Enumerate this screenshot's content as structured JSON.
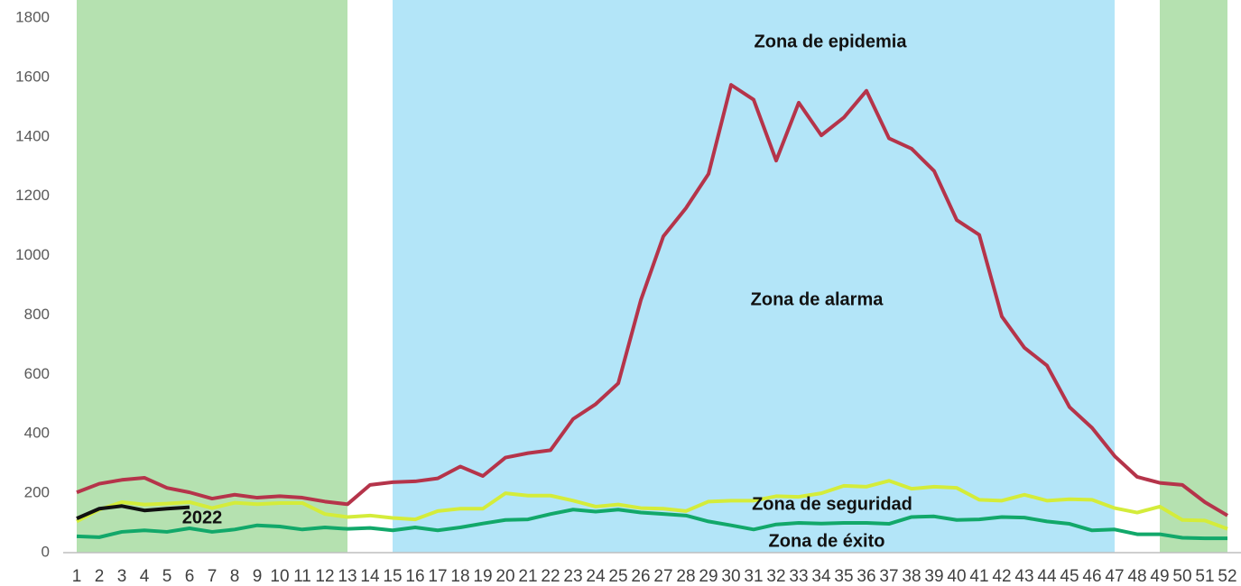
{
  "chart_data": {
    "type": "line",
    "categories": [
      1,
      2,
      3,
      4,
      5,
      6,
      7,
      8,
      9,
      10,
      11,
      12,
      13,
      14,
      15,
      16,
      17,
      18,
      19,
      20,
      21,
      22,
      23,
      24,
      25,
      26,
      27,
      28,
      29,
      30,
      31,
      32,
      33,
      34,
      35,
      36,
      37,
      38,
      39,
      40,
      41,
      42,
      43,
      44,
      45,
      46,
      47,
      48,
      49,
      50,
      51,
      52
    ],
    "ylim": [
      0,
      1800
    ],
    "yticks": [
      0,
      200,
      400,
      600,
      800,
      1000,
      1200,
      1400,
      1600,
      1800
    ],
    "bands": [
      {
        "from": 1,
        "to": 13,
        "color": "#b5e1b0"
      },
      {
        "from": 15,
        "to": 47,
        "color": "#b3e5f8"
      },
      {
        "from": 49,
        "to": 52,
        "color": "#b5e1b0"
      }
    ],
    "series": [
      {
        "color": "#b5344a",
        "values": [
          203,
          232,
          245,
          252,
          218,
          203,
          182,
          195,
          185,
          190,
          185,
          172,
          163,
          228,
          237,
          240,
          250,
          290,
          258,
          320,
          335,
          345,
          450,
          500,
          570,
          850,
          1065,
          1160,
          1275,
          1575,
          1525,
          1320,
          1515,
          1405,
          1465,
          1555,
          1395,
          1360,
          1285,
          1120,
          1070,
          795,
          690,
          630,
          490,
          420,
          325,
          255,
          235,
          228,
          170,
          125
        ]
      },
      {
        "color": "#d4ec3a",
        "values": [
          105,
          145,
          170,
          162,
          165,
          170,
          150,
          168,
          163,
          167,
          167,
          130,
          120,
          125,
          117,
          112,
          140,
          148,
          148,
          200,
          192,
          192,
          175,
          155,
          162,
          150,
          148,
          140,
          172,
          175,
          175,
          190,
          188,
          200,
          225,
          222,
          242,
          215,
          222,
          218,
          178,
          175,
          195,
          175,
          180,
          178,
          150,
          135,
          155,
          110,
          108,
          80
        ]
      },
      {
        "color": "#12a86a",
        "values": [
          55,
          52,
          70,
          75,
          70,
          82,
          70,
          78,
          92,
          88,
          78,
          85,
          80,
          83,
          75,
          85,
          75,
          85,
          98,
          110,
          112,
          130,
          145,
          138,
          145,
          135,
          130,
          125,
          105,
          92,
          78,
          95,
          100,
          98,
          100,
          100,
          97,
          120,
          122,
          110,
          112,
          120,
          118,
          105,
          97,
          75,
          78,
          62,
          62,
          50,
          48,
          48
        ]
      },
      {
        "name": "2022",
        "color": "#111111",
        "values": [
          115,
          148,
          157,
          142,
          148,
          153,
          null,
          null,
          null,
          null,
          null,
          null,
          null,
          null,
          null,
          null,
          null,
          null,
          null,
          null,
          null,
          null,
          null,
          null,
          null,
          null,
          null,
          null,
          null,
          null,
          null,
          null,
          null,
          null,
          null,
          null,
          null,
          null,
          null,
          null,
          null,
          null,
          null,
          null,
          null,
          null,
          null,
          null,
          null,
          null,
          null,
          null
        ]
      }
    ],
    "annotations": [
      "Zona de epidemia",
      "Zona de alarma",
      "Zona de seguridad",
      "Zona de éxito"
    ]
  }
}
